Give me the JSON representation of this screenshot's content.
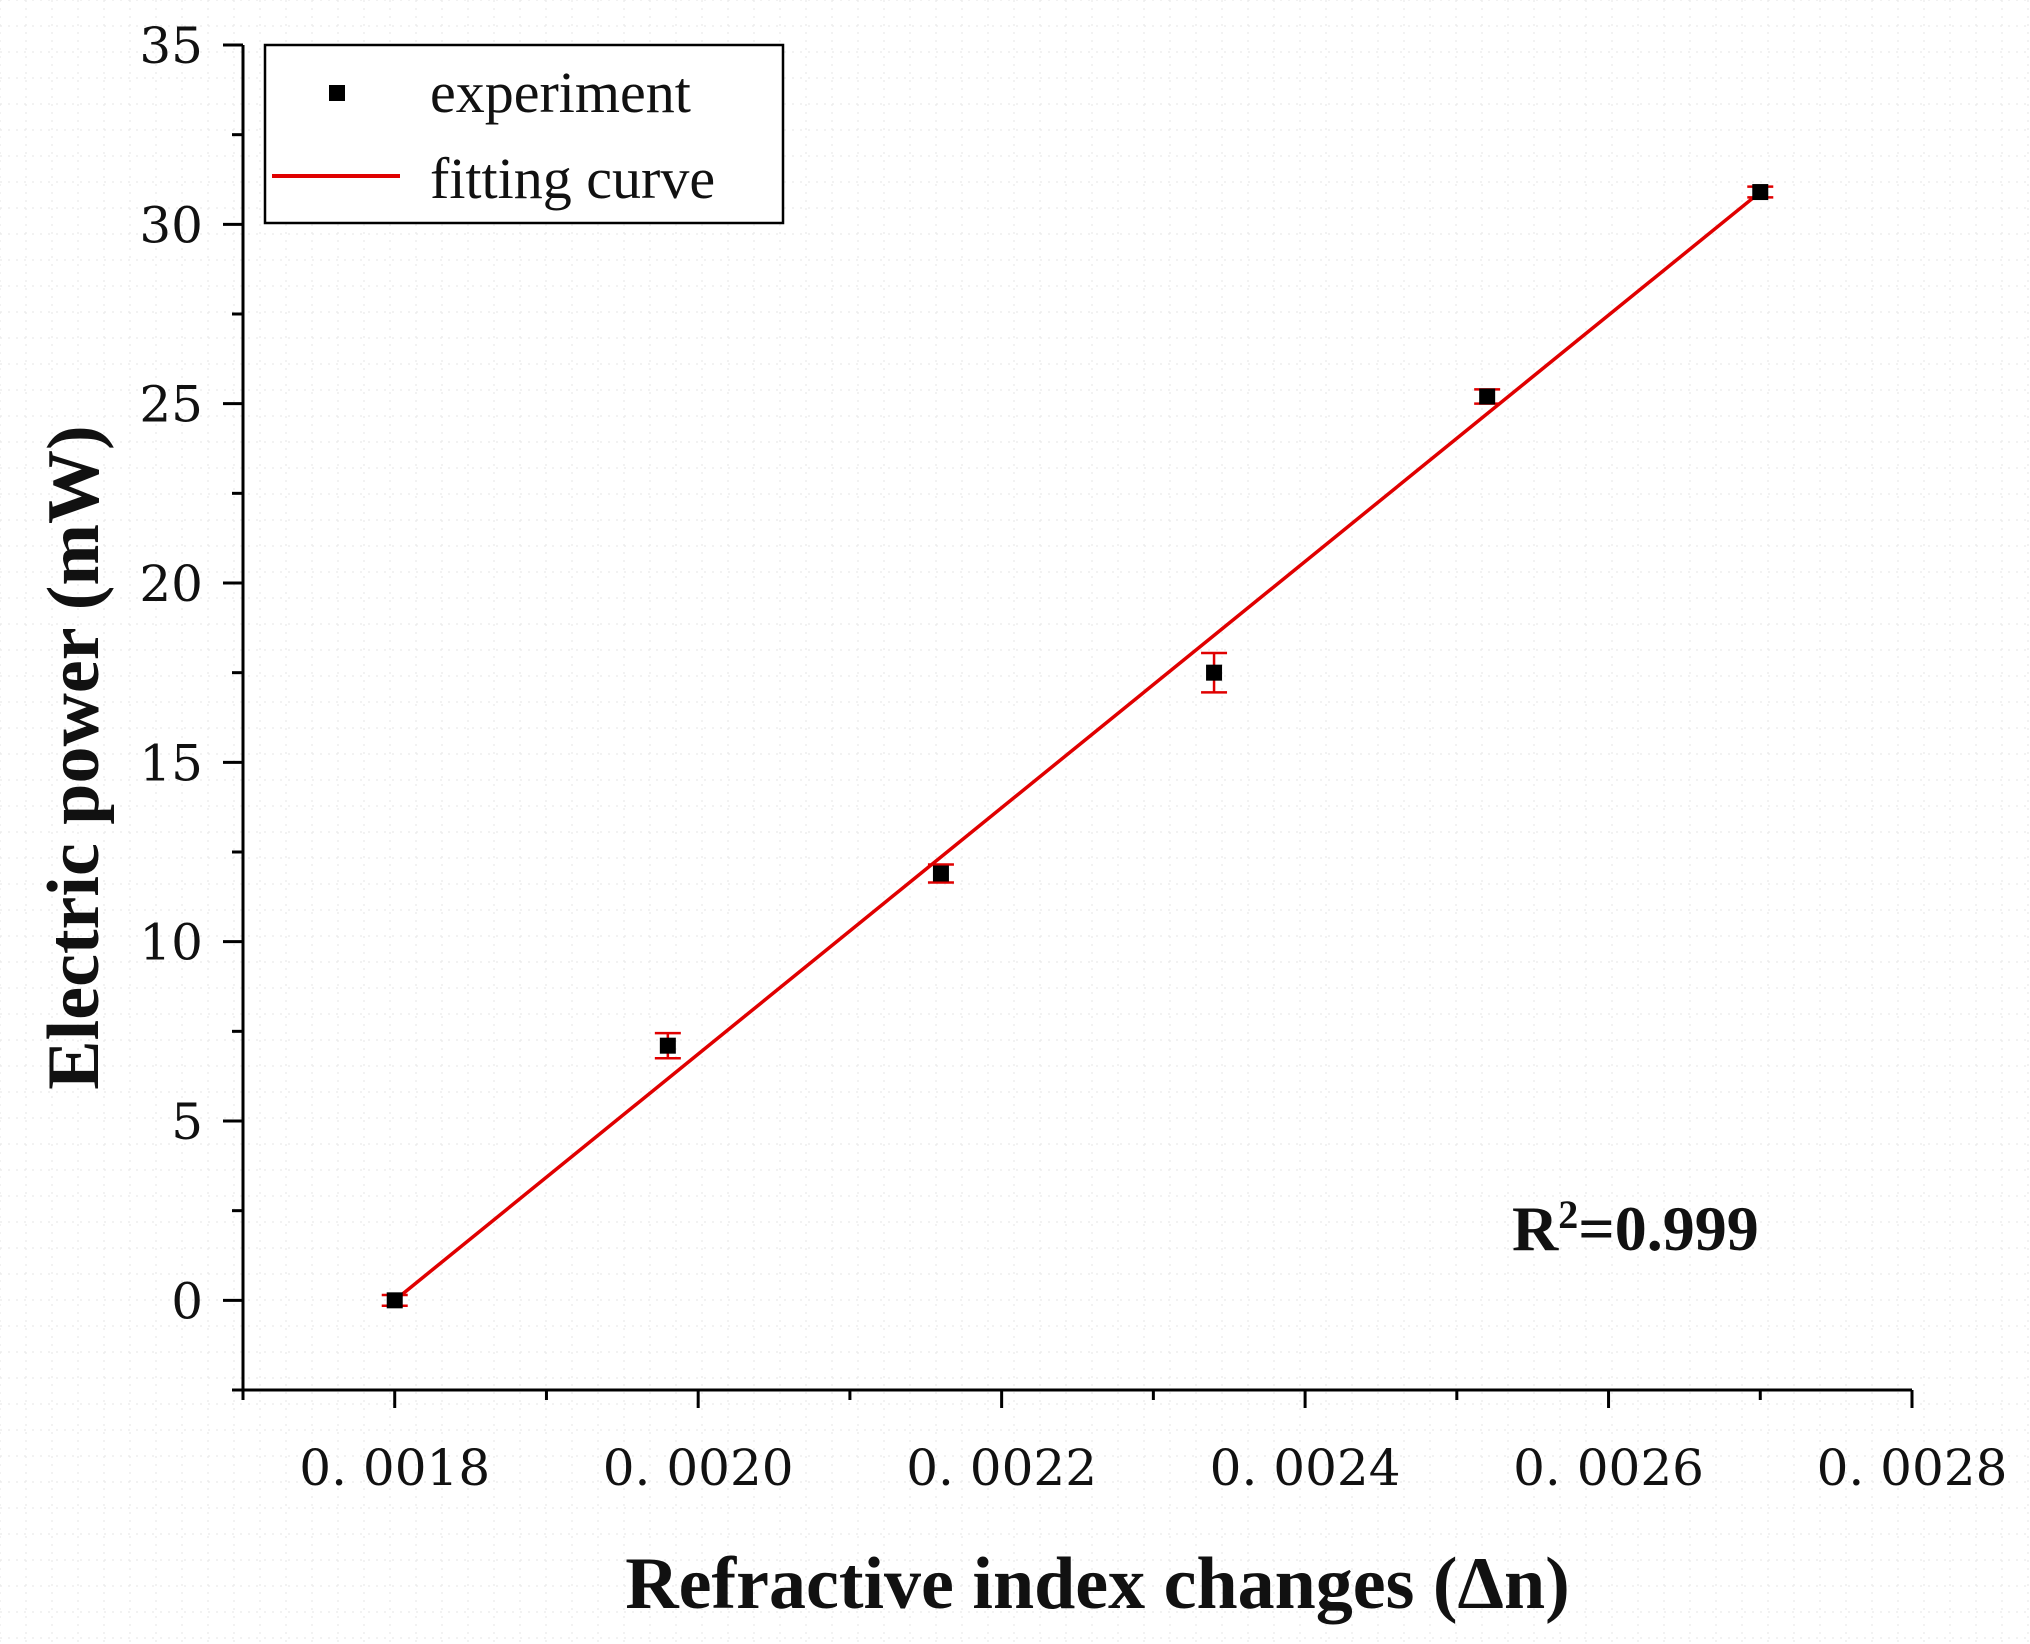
{
  "chart_data": {
    "type": "scatter",
    "title": "",
    "xlabel": "Refractive index changes (Δn)",
    "ylabel": "Electric power (mW)",
    "xlim": [
      0.0017,
      0.0028
    ],
    "ylim": [
      -2.5,
      35
    ],
    "x_ticks": [
      {
        "value": 0.0018,
        "label": "0. 0018"
      },
      {
        "value": 0.002,
        "label": "0. 0020"
      },
      {
        "value": 0.0022,
        "label": "0. 0022"
      },
      {
        "value": 0.0024,
        "label": "0. 0024"
      },
      {
        "value": 0.0026,
        "label": "0. 0026"
      },
      {
        "value": 0.0028,
        "label": "0. 0028"
      }
    ],
    "y_ticks": [
      {
        "value": 0,
        "label": "0"
      },
      {
        "value": 5,
        "label": "5"
      },
      {
        "value": 10,
        "label": "10"
      },
      {
        "value": 15,
        "label": "15"
      },
      {
        "value": 20,
        "label": "20"
      },
      {
        "value": 25,
        "label": "25"
      },
      {
        "value": 30,
        "label": "30"
      },
      {
        "value": 35,
        "label": "35"
      }
    ],
    "series": [
      {
        "name": "experiment",
        "kind": "scatter",
        "color": "#000000",
        "error_color": "#e00000",
        "points": [
          {
            "x": 0.0018,
            "y": 0.0,
            "err": 0.15
          },
          {
            "x": 0.00198,
            "y": 7.1,
            "err": 0.35
          },
          {
            "x": 0.00216,
            "y": 11.9,
            "err": 0.25
          },
          {
            "x": 0.00234,
            "y": 17.5,
            "err": 0.55
          },
          {
            "x": 0.00252,
            "y": 25.2,
            "err": 0.2
          },
          {
            "x": 0.0027,
            "y": 30.9,
            "err": 0.15
          }
        ]
      },
      {
        "name": "fitting curve",
        "kind": "line",
        "color": "#e00000",
        "x": [
          0.0018,
          0.0027
        ],
        "y": [
          0.0,
          30.9
        ]
      }
    ],
    "legend": {
      "position": "top-left"
    },
    "annotation": {
      "base": "R",
      "sup": "2",
      "rest": "=0.999"
    }
  }
}
